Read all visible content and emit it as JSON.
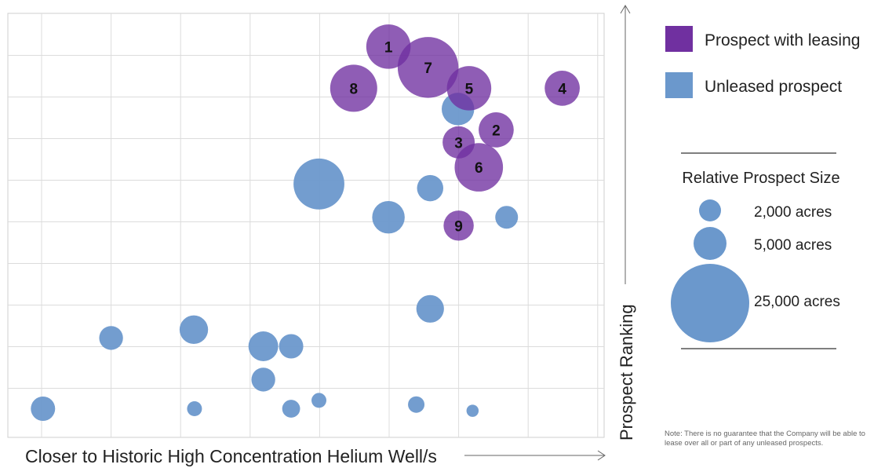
{
  "chart_data": {
    "type": "bubble",
    "title": "",
    "xlabel": "Closer to Historic High Concentration Helium Well/s",
    "ylabel": "Prospect Ranking",
    "xlim": [
      0,
      8
    ],
    "ylim": [
      0,
      10
    ],
    "grid": true,
    "legend": {
      "placement": "right",
      "items": [
        {
          "label": "Prospect with leasing",
          "color": "#7030a0"
        },
        {
          "label": "Unleased prospect",
          "color": "#6b98cc"
        }
      ]
    },
    "size_legend": {
      "title": "Relative Prospect Size",
      "entries": [
        {
          "label": "2,000 acres",
          "acres": 2000
        },
        {
          "label": "5,000 acres",
          "acres": 5000
        },
        {
          "label": "25,000 acres",
          "acres": 25000
        }
      ]
    },
    "series": [
      {
        "name": "Prospect with leasing",
        "color": "#7030a0",
        "points": [
          {
            "label": "1",
            "x": 4.99,
            "y": 9.2,
            "acres": 8000
          },
          {
            "label": "7",
            "x": 5.56,
            "y": 8.7,
            "acres": 15000
          },
          {
            "label": "8",
            "x": 4.49,
            "y": 8.2,
            "acres": 9000
          },
          {
            "label": "5",
            "x": 6.15,
            "y": 8.2,
            "acres": 8000
          },
          {
            "label": "4",
            "x": 7.49,
            "y": 8.2,
            "acres": 5000
          },
          {
            "label": "2",
            "x": 6.54,
            "y": 7.2,
            "acres": 5000
          },
          {
            "label": "3",
            "x": 6.0,
            "y": 6.9,
            "acres": 4200
          },
          {
            "label": "6",
            "x": 6.29,
            "y": 6.3,
            "acres": 9500
          },
          {
            "label": "9",
            "x": 6.0,
            "y": 4.9,
            "acres": 3700
          }
        ]
      },
      {
        "name": "Unleased prospect",
        "color": "#6b98cc",
        "points": [
          {
            "x": 5.99,
            "y": 7.7,
            "acres": 4300
          },
          {
            "x": 3.99,
            "y": 5.9,
            "acres": 10500
          },
          {
            "x": 5.59,
            "y": 5.8,
            "acres": 2800
          },
          {
            "x": 4.99,
            "y": 5.1,
            "acres": 4300
          },
          {
            "x": 6.69,
            "y": 5.1,
            "acres": 2100
          },
          {
            "x": 5.59,
            "y": 2.9,
            "acres": 3100
          },
          {
            "x": 1.0,
            "y": 2.2,
            "acres": 2300
          },
          {
            "x": 2.19,
            "y": 2.4,
            "acres": 3300
          },
          {
            "x": 3.19,
            "y": 2.0,
            "acres": 3600
          },
          {
            "x": 3.59,
            "y": 2.0,
            "acres": 2400
          },
          {
            "x": 3.19,
            "y": 1.2,
            "acres": 2300
          },
          {
            "x": 0.02,
            "y": 0.5,
            "acres": 2400
          },
          {
            "x": 2.2,
            "y": 0.5,
            "acres": 900
          },
          {
            "x": 3.59,
            "y": 0.5,
            "acres": 1300
          },
          {
            "x": 3.99,
            "y": 0.7,
            "acres": 900
          },
          {
            "x": 5.39,
            "y": 0.6,
            "acres": 1100
          },
          {
            "x": 6.2,
            "y": 0.45,
            "acres": 600
          }
        ]
      }
    ],
    "note": "Note: There is no guarantee that the Company will be able to lease over all or part of any unleased prospects."
  }
}
